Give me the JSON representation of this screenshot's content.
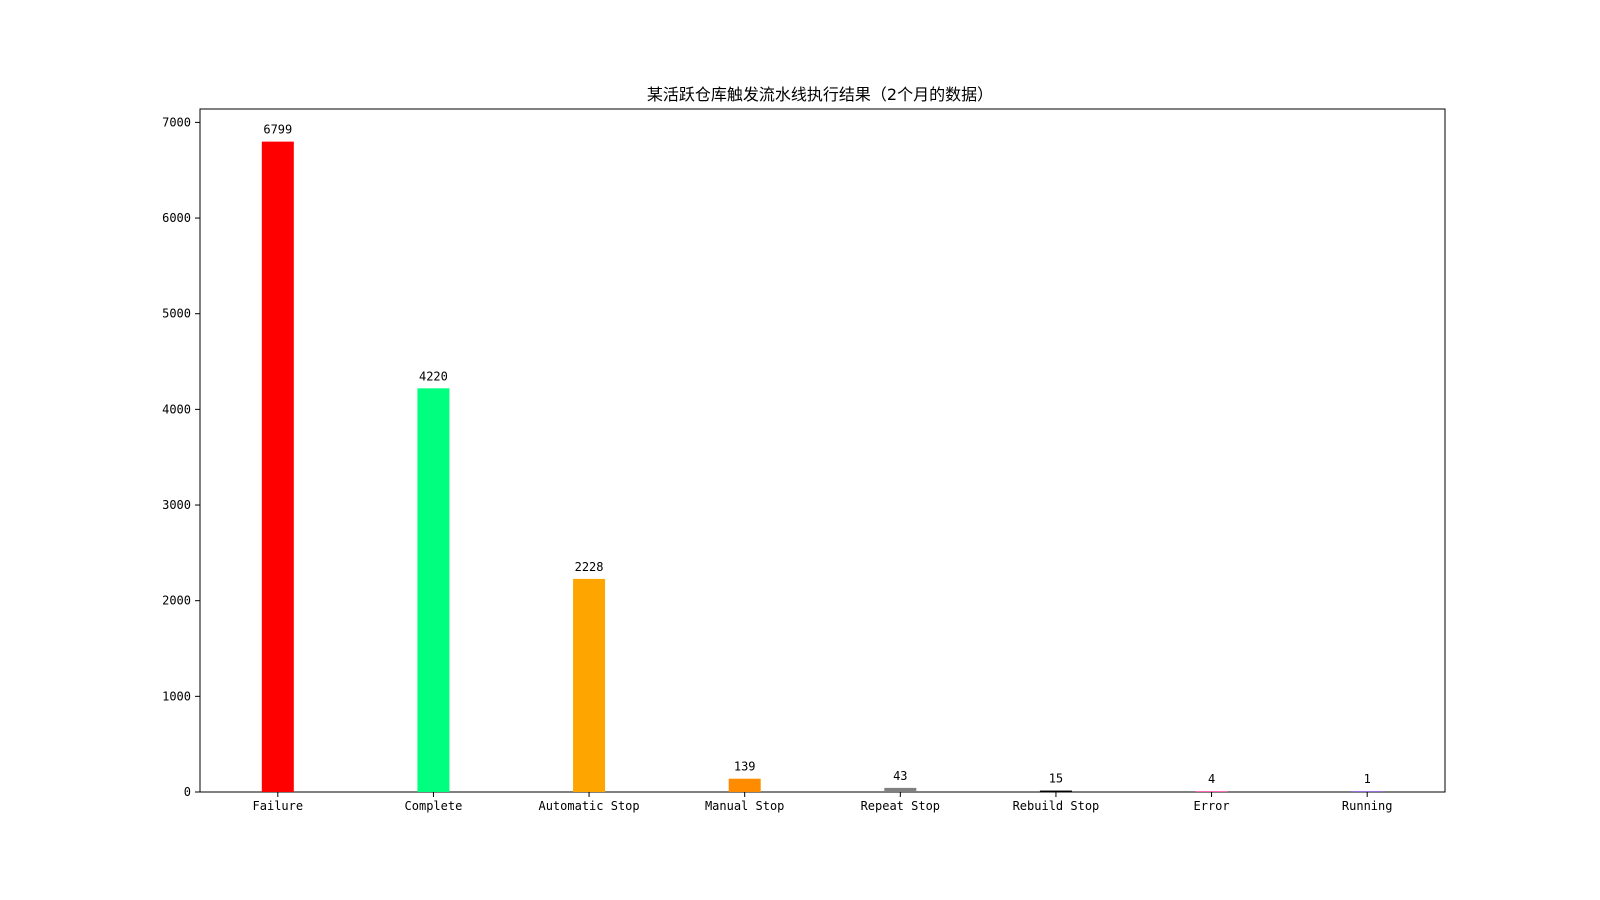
{
  "chart_data": {
    "type": "bar",
    "title": "某活跃仓库触发流水线执行结果（2个月的数据）",
    "xlabel": "",
    "ylabel": "",
    "categories": [
      "Failure",
      "Complete",
      "Automatic Stop",
      "Manual Stop",
      "Repeat Stop",
      "Rebuild Stop",
      "Error",
      "Running"
    ],
    "values": [
      6799,
      4220,
      2228,
      139,
      43,
      15,
      4,
      1
    ],
    "colors": [
      "#ff0000",
      "#00ff7f",
      "#ffa500",
      "#ff8c00",
      "#808080",
      "#000000",
      "#ff69b4",
      "#9370db"
    ],
    "ylim": [
      0,
      7140
    ],
    "yticks": [
      0,
      1000,
      2000,
      3000,
      4000,
      5000,
      6000,
      7000
    ],
    "grid": false,
    "legend": false
  }
}
